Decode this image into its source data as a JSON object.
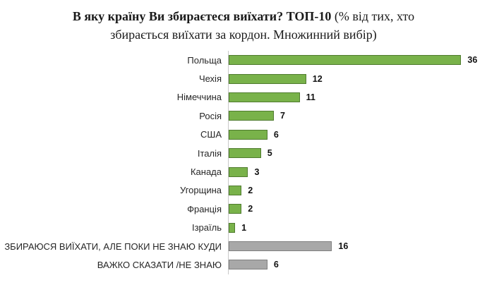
{
  "title": {
    "bold": "В яку країну Ви збираєтеся виїхати? ТОП-10",
    "normal": " (% від тих, хто збирається виїхати за кордон. Множинний вибір)"
  },
  "chart_data": {
    "type": "bar",
    "orientation": "horizontal",
    "title": "В яку країну Ви збираєтеся виїхати? ТОП-10 (% від тих, хто збирається виїхати за кордон. Множинний вибір)",
    "categories": [
      "Польща",
      "Чехія",
      "Німеччина",
      "Росія",
      "США",
      "Італія",
      "Канада",
      "Угорщина",
      "Франція",
      "Ізраїль",
      "ЗБИРАЮСЯ ВИЇХАТИ, АЛЕ ПОКИ НЕ ЗНАЮ КУДИ",
      "ВАЖКО СКАЗАТИ /НЕ ЗНАЮ"
    ],
    "values": [
      36,
      12,
      11,
      7,
      6,
      5,
      3,
      2,
      2,
      1,
      16,
      6
    ],
    "bar_colors": [
      "green",
      "green",
      "green",
      "green",
      "green",
      "green",
      "green",
      "green",
      "green",
      "green",
      "gray",
      "gray"
    ],
    "palette": {
      "green_fill": "#79b24a",
      "green_border": "#4f7b2e",
      "gray_fill": "#a8a8a8",
      "gray_border": "#7f7f7f",
      "axis_line": "#c9c9c9"
    },
    "xlim": [
      0,
      40
    ],
    "value_labels": true,
    "grid": false,
    "legend": false
  }
}
